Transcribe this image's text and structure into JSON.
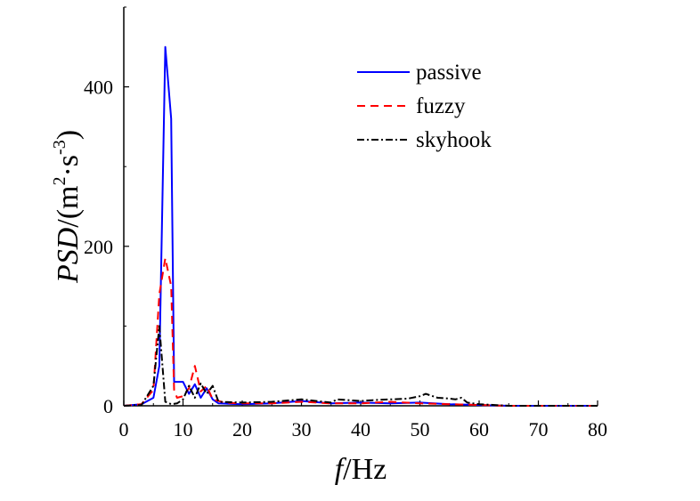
{
  "chart_data": {
    "type": "line",
    "xlabel": {
      "italic": "f",
      "rest": "/Hz"
    },
    "ylabel": {
      "italic": "PSD",
      "rest1": "/(m",
      "sup1": "2",
      "rest2": "·s",
      "sup2": "-3",
      "rest3": ")"
    },
    "xlim": [
      0,
      80
    ],
    "ylim": [
      0,
      500
    ],
    "x_ticks": [
      0,
      10,
      20,
      30,
      40,
      50,
      60,
      70,
      80
    ],
    "y_ticks": [
      0,
      200,
      400
    ],
    "grid": false,
    "legend_position": "top-right",
    "series": [
      {
        "name": "passive",
        "color": "#0000ff",
        "style": "solid",
        "points": [
          [
            0,
            0
          ],
          [
            3,
            2
          ],
          [
            5,
            10
          ],
          [
            6,
            50
          ],
          [
            7,
            450
          ],
          [
            8,
            360
          ],
          [
            8.5,
            30
          ],
          [
            10,
            30
          ],
          [
            11,
            15
          ],
          [
            12,
            27
          ],
          [
            13,
            10
          ],
          [
            14,
            22
          ],
          [
            15,
            8
          ],
          [
            16,
            3
          ],
          [
            20,
            2
          ],
          [
            25,
            3
          ],
          [
            30,
            6
          ],
          [
            35,
            3
          ],
          [
            40,
            4
          ],
          [
            45,
            3
          ],
          [
            50,
            4
          ],
          [
            55,
            2
          ],
          [
            60,
            1
          ],
          [
            65,
            0
          ],
          [
            70,
            0
          ],
          [
            80,
            0
          ]
        ]
      },
      {
        "name": "fuzzy",
        "color": "#ff0000",
        "style": "dashed",
        "points": [
          [
            0,
            0
          ],
          [
            3,
            2
          ],
          [
            5,
            20
          ],
          [
            6,
            140
          ],
          [
            7,
            185
          ],
          [
            8,
            150
          ],
          [
            8.5,
            20
          ],
          [
            9,
            10
          ],
          [
            10,
            12
          ],
          [
            11,
            22
          ],
          [
            12,
            50
          ],
          [
            13,
            18
          ],
          [
            14,
            25
          ],
          [
            15,
            8
          ],
          [
            17,
            4
          ],
          [
            20,
            3
          ],
          [
            25,
            3
          ],
          [
            30,
            5
          ],
          [
            35,
            3
          ],
          [
            40,
            3
          ],
          [
            45,
            5
          ],
          [
            50,
            3
          ],
          [
            55,
            2
          ],
          [
            60,
            1
          ],
          [
            65,
            0
          ],
          [
            80,
            0
          ]
        ]
      },
      {
        "name": "skyhook",
        "color": "#000000",
        "style": "dashdot",
        "points": [
          [
            0,
            0
          ],
          [
            3,
            1
          ],
          [
            5,
            25
          ],
          [
            6,
            100
          ],
          [
            7,
            5
          ],
          [
            8,
            2
          ],
          [
            9,
            3
          ],
          [
            10,
            8
          ],
          [
            11,
            25
          ],
          [
            12,
            10
          ],
          [
            13,
            28
          ],
          [
            14,
            15
          ],
          [
            15,
            25
          ],
          [
            16,
            5
          ],
          [
            20,
            4
          ],
          [
            25,
            5
          ],
          [
            30,
            8
          ],
          [
            35,
            4
          ],
          [
            36,
            8
          ],
          [
            40,
            6
          ],
          [
            42,
            7
          ],
          [
            45,
            8
          ],
          [
            48,
            9
          ],
          [
            50,
            12
          ],
          [
            51,
            15
          ],
          [
            53,
            10
          ],
          [
            55,
            9
          ],
          [
            56,
            8
          ],
          [
            57,
            10
          ],
          [
            58,
            4
          ],
          [
            60,
            2
          ],
          [
            65,
            0
          ],
          [
            80,
            0
          ]
        ]
      }
    ]
  }
}
